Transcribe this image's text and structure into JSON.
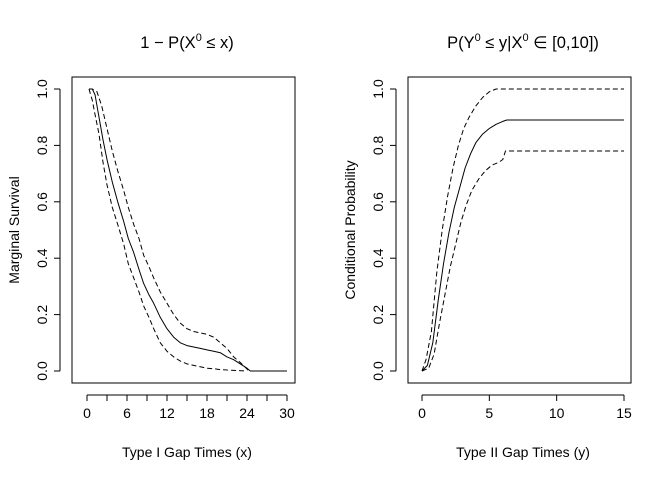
{
  "figure": {
    "background": "#ffffff",
    "ink": "#000000"
  },
  "chart_data": [
    {
      "type": "line",
      "title_main": "1 − P(X",
      "title_sup": "0",
      "title_tail": " ≤ x)",
      "xlabel": "Type I Gap Times (x)",
      "ylabel": "Marginal Survival",
      "xlim": [
        0,
        30
      ],
      "ylim": [
        0,
        1
      ],
      "xticks": [
        0,
        6,
        12,
        18,
        24,
        30
      ],
      "xticks_minor": [
        3,
        9,
        15,
        21,
        27
      ],
      "yticks": [
        0,
        0.2,
        0.4,
        0.6,
        0.8,
        1
      ],
      "ytick_labels": [
        "0.0",
        "0.2",
        "0.4",
        "0.6",
        "0.8",
        "1.0"
      ],
      "grid": false,
      "legend": "none",
      "series": [
        {
          "style": "solid",
          "x": [
            0.3,
            0.8,
            1.2,
            1.8,
            2.4,
            3,
            3.8,
            4.6,
            5.5,
            6.2,
            7,
            7.8,
            8.5,
            9.3,
            10,
            11,
            12,
            13,
            14,
            15,
            16,
            17,
            18,
            19,
            20,
            21,
            22,
            23,
            24,
            24.5,
            30
          ],
          "y": [
            1.0,
            1.0,
            0.98,
            0.9,
            0.82,
            0.75,
            0.67,
            0.6,
            0.53,
            0.47,
            0.42,
            0.36,
            0.31,
            0.27,
            0.24,
            0.19,
            0.15,
            0.12,
            0.1,
            0.09,
            0.085,
            0.08,
            0.075,
            0.07,
            0.065,
            0.05,
            0.04,
            0.025,
            0.01,
            0.0,
            0.0
          ]
        },
        {
          "style": "dashed",
          "x": [
            0.3,
            0.8,
            1.5,
            2.2,
            3,
            3.8,
            4.6,
            5.5,
            6.2,
            7,
            7.8,
            8.5,
            9.3,
            10,
            11,
            12,
            13,
            14,
            15,
            16,
            17,
            18,
            19,
            20,
            21,
            22,
            23,
            24.3
          ],
          "y": [
            1.0,
            1.0,
            0.99,
            0.94,
            0.86,
            0.78,
            0.71,
            0.64,
            0.58,
            0.52,
            0.47,
            0.41,
            0.37,
            0.33,
            0.28,
            0.24,
            0.2,
            0.17,
            0.15,
            0.14,
            0.135,
            0.13,
            0.12,
            0.1,
            0.08,
            0.05,
            0.03,
            0.0
          ]
        },
        {
          "style": "dashed",
          "x": [
            0.3,
            0.8,
            1.2,
            1.8,
            2.4,
            3,
            3.8,
            4.6,
            5.5,
            6.2,
            7,
            7.8,
            8.5,
            9.3,
            10,
            11,
            12,
            13,
            14,
            15,
            16,
            17,
            18,
            19,
            20,
            22,
            24
          ],
          "y": [
            1.0,
            0.96,
            0.91,
            0.84,
            0.74,
            0.66,
            0.58,
            0.52,
            0.45,
            0.38,
            0.33,
            0.28,
            0.23,
            0.19,
            0.15,
            0.1,
            0.07,
            0.05,
            0.035,
            0.025,
            0.02,
            0.015,
            0.01,
            0.008,
            0.005,
            0.002,
            0.0
          ]
        }
      ]
    },
    {
      "type": "line",
      "title_main": "P(Y",
      "title_sup": "0",
      "title_mid": " ≤ y|X",
      "title_sup2": "0",
      "title_tail": " ∈ [0,10])",
      "xlabel": "Type II Gap Times (y)",
      "ylabel": "Conditional Probability",
      "xlim": [
        0,
        15
      ],
      "ylim": [
        0,
        1
      ],
      "xticks": [
        0,
        5,
        10,
        15
      ],
      "yticks": [
        0,
        0.2,
        0.4,
        0.6,
        0.8,
        1
      ],
      "ytick_labels": [
        "0.0",
        "0.2",
        "0.4",
        "0.6",
        "0.8",
        "1.0"
      ],
      "grid": false,
      "legend": "none",
      "series": [
        {
          "style": "solid",
          "x": [
            0,
            0.4,
            0.8,
            1.2,
            1.6,
            2.0,
            2.4,
            2.8,
            3.2,
            3.6,
            4.0,
            4.5,
            5.0,
            5.5,
            6.0,
            6.3,
            15
          ],
          "y": [
            0.0,
            0.02,
            0.1,
            0.25,
            0.38,
            0.49,
            0.58,
            0.65,
            0.72,
            0.77,
            0.81,
            0.84,
            0.86,
            0.875,
            0.885,
            0.89,
            0.89
          ]
        },
        {
          "style": "dashed",
          "x": [
            0,
            0.3,
            0.7,
            1.1,
            1.5,
            1.9,
            2.3,
            2.7,
            3.1,
            3.5,
            4.0,
            4.5,
            5.0,
            5.5,
            6.0,
            15
          ],
          "y": [
            0.0,
            0.04,
            0.14,
            0.35,
            0.5,
            0.62,
            0.72,
            0.8,
            0.86,
            0.9,
            0.94,
            0.97,
            0.99,
            1.0,
            1.0,
            1.0
          ]
        },
        {
          "style": "dashed",
          "x": [
            0,
            0.5,
            0.9,
            1.3,
            1.7,
            2.1,
            2.5,
            2.9,
            3.3,
            3.7,
            4.2,
            4.7,
            5.2,
            5.7,
            6.0,
            6.2,
            15
          ],
          "y": [
            0.0,
            0.01,
            0.06,
            0.17,
            0.27,
            0.37,
            0.45,
            0.53,
            0.59,
            0.64,
            0.68,
            0.71,
            0.73,
            0.74,
            0.75,
            0.78,
            0.78
          ]
        }
      ]
    }
  ]
}
